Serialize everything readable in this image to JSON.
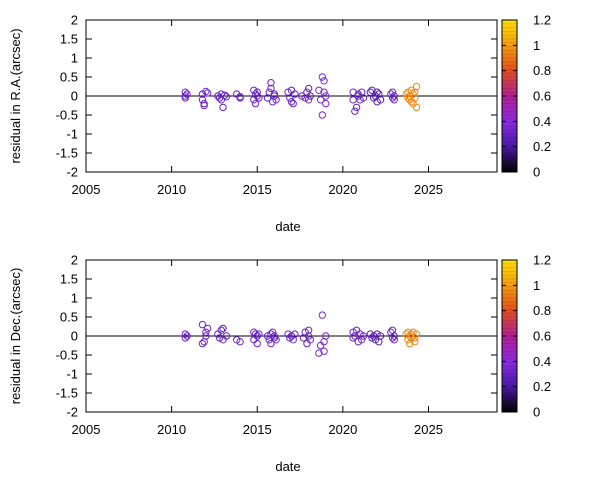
{
  "chart_data": [
    {
      "type": "scatter",
      "name": "ra",
      "xlabel": "date",
      "ylabel": "residual in R.A.(arcsec)",
      "xlim": [
        2005,
        2029
      ],
      "ylim": [
        -2,
        2
      ],
      "x_ticks": [
        2005,
        2010,
        2015,
        2020,
        2025
      ],
      "y_ticks": [
        -2,
        -1.5,
        -1,
        -0.5,
        0,
        0.5,
        1,
        1.5,
        2
      ],
      "colorbar": {
        "range": [
          0,
          1.2
        ],
        "ticks": [
          0,
          0.2,
          0.4,
          0.6,
          0.8,
          1,
          1.2
        ]
      },
      "zero_line": 0,
      "points": [
        {
          "x": 2010.8,
          "y": 0.1,
          "c": 0.3
        },
        {
          "x": 2010.8,
          "y": -0.05,
          "c": 0.3
        },
        {
          "x": 2010.9,
          "y": 0.05,
          "c": 0.3
        },
        {
          "x": 2010.8,
          "y": 0.0,
          "c": 0.3
        },
        {
          "x": 2011.8,
          "y": 0.05,
          "c": 0.32
        },
        {
          "x": 2011.8,
          "y": -0.1,
          "c": 0.32
        },
        {
          "x": 2011.9,
          "y": -0.25,
          "c": 0.32
        },
        {
          "x": 2011.9,
          "y": -0.2,
          "c": 0.32
        },
        {
          "x": 2012.0,
          "y": 0.12,
          "c": 0.32
        },
        {
          "x": 2012.1,
          "y": 0.08,
          "c": 0.32
        },
        {
          "x": 2012.7,
          "y": 0.0,
          "c": 0.3
        },
        {
          "x": 2012.8,
          "y": -0.05,
          "c": 0.3
        },
        {
          "x": 2012.9,
          "y": 0.05,
          "c": 0.3
        },
        {
          "x": 2012.9,
          "y": -0.1,
          "c": 0.3
        },
        {
          "x": 2013.0,
          "y": -0.3,
          "c": 0.3
        },
        {
          "x": 2013.1,
          "y": 0.02,
          "c": 0.3
        },
        {
          "x": 2013.2,
          "y": -0.02,
          "c": 0.3
        },
        {
          "x": 2013.8,
          "y": 0.05,
          "c": 0.3
        },
        {
          "x": 2014.0,
          "y": -0.05,
          "c": 0.3
        },
        {
          "x": 2014.0,
          "y": -0.02,
          "c": 0.3
        },
        {
          "x": 2014.8,
          "y": 0.15,
          "c": 0.3
        },
        {
          "x": 2014.8,
          "y": -0.1,
          "c": 0.3
        },
        {
          "x": 2014.9,
          "y": 0.05,
          "c": 0.3
        },
        {
          "x": 2014.9,
          "y": -0.2,
          "c": 0.3
        },
        {
          "x": 2015.0,
          "y": 0.0,
          "c": 0.3
        },
        {
          "x": 2015.0,
          "y": 0.1,
          "c": 0.3
        },
        {
          "x": 2015.1,
          "y": -0.05,
          "c": 0.3
        },
        {
          "x": 2015.6,
          "y": -0.05,
          "c": 0.3
        },
        {
          "x": 2015.7,
          "y": 0.1,
          "c": 0.3
        },
        {
          "x": 2015.8,
          "y": 0.35,
          "c": 0.3
        },
        {
          "x": 2015.8,
          "y": 0.2,
          "c": 0.3
        },
        {
          "x": 2015.9,
          "y": -0.15,
          "c": 0.3
        },
        {
          "x": 2016.0,
          "y": 0.0,
          "c": 0.3
        },
        {
          "x": 2016.0,
          "y": 0.05,
          "c": 0.3
        },
        {
          "x": 2016.1,
          "y": -0.1,
          "c": 0.3
        },
        {
          "x": 2016.8,
          "y": 0.1,
          "c": 0.3
        },
        {
          "x": 2016.9,
          "y": -0.05,
          "c": 0.3
        },
        {
          "x": 2017.0,
          "y": -0.15,
          "c": 0.3
        },
        {
          "x": 2017.0,
          "y": 0.15,
          "c": 0.3
        },
        {
          "x": 2017.1,
          "y": -0.2,
          "c": 0.3
        },
        {
          "x": 2017.2,
          "y": 0.05,
          "c": 0.3
        },
        {
          "x": 2017.6,
          "y": 0.0,
          "c": 0.3
        },
        {
          "x": 2017.8,
          "y": -0.05,
          "c": 0.3
        },
        {
          "x": 2017.9,
          "y": 0.1,
          "c": 0.3
        },
        {
          "x": 2018.0,
          "y": -0.1,
          "c": 0.3
        },
        {
          "x": 2018.0,
          "y": 0.2,
          "c": 0.3
        },
        {
          "x": 2018.1,
          "y": 0.0,
          "c": 0.3
        },
        {
          "x": 2018.6,
          "y": 0.15,
          "c": 0.35
        },
        {
          "x": 2018.7,
          "y": -0.1,
          "c": 0.35
        },
        {
          "x": 2018.8,
          "y": -0.5,
          "c": 0.35
        },
        {
          "x": 2018.8,
          "y": 0.5,
          "c": 0.35
        },
        {
          "x": 2018.9,
          "y": 0.4,
          "c": 0.35
        },
        {
          "x": 2018.9,
          "y": 0.1,
          "c": 0.35
        },
        {
          "x": 2019.0,
          "y": -0.2,
          "c": 0.35
        },
        {
          "x": 2019.0,
          "y": 0.0,
          "c": 0.35
        },
        {
          "x": 2020.6,
          "y": 0.1,
          "c": 0.3
        },
        {
          "x": 2020.6,
          "y": -0.1,
          "c": 0.3
        },
        {
          "x": 2020.7,
          "y": -0.4,
          "c": 0.3
        },
        {
          "x": 2020.8,
          "y": -0.3,
          "c": 0.3
        },
        {
          "x": 2020.9,
          "y": 0.0,
          "c": 0.3
        },
        {
          "x": 2020.9,
          "y": 0.05,
          "c": 0.3
        },
        {
          "x": 2021.0,
          "y": -0.1,
          "c": 0.3
        },
        {
          "x": 2021.1,
          "y": 0.1,
          "c": 0.3
        },
        {
          "x": 2021.2,
          "y": -0.05,
          "c": 0.3
        },
        {
          "x": 2021.6,
          "y": 0.1,
          "c": 0.25
        },
        {
          "x": 2021.7,
          "y": 0.15,
          "c": 0.25
        },
        {
          "x": 2021.8,
          "y": -0.05,
          "c": 0.25
        },
        {
          "x": 2021.9,
          "y": 0.0,
          "c": 0.25
        },
        {
          "x": 2022.0,
          "y": 0.1,
          "c": 0.25
        },
        {
          "x": 2022.0,
          "y": -0.15,
          "c": 0.25
        },
        {
          "x": 2022.1,
          "y": 0.05,
          "c": 0.25
        },
        {
          "x": 2022.2,
          "y": -0.1,
          "c": 0.25
        },
        {
          "x": 2022.8,
          "y": 0.05,
          "c": 0.3
        },
        {
          "x": 2022.9,
          "y": -0.05,
          "c": 0.3
        },
        {
          "x": 2022.9,
          "y": 0.1,
          "c": 0.3
        },
        {
          "x": 2023.0,
          "y": 0.0,
          "c": 0.3
        },
        {
          "x": 2023.0,
          "y": -0.1,
          "c": 0.3
        },
        {
          "x": 2023.7,
          "y": 0.05,
          "c": 0.95
        },
        {
          "x": 2023.8,
          "y": -0.05,
          "c": 0.95
        },
        {
          "x": 2023.8,
          "y": 0.1,
          "c": 0.95
        },
        {
          "x": 2023.9,
          "y": 0.0,
          "c": 0.95
        },
        {
          "x": 2023.9,
          "y": -0.1,
          "c": 0.95
        },
        {
          "x": 2024.0,
          "y": 0.15,
          "c": 0.95
        },
        {
          "x": 2024.0,
          "y": -0.15,
          "c": 0.95
        },
        {
          "x": 2024.1,
          "y": 0.05,
          "c": 0.95
        },
        {
          "x": 2024.2,
          "y": -0.05,
          "c": 0.95
        },
        {
          "x": 2024.2,
          "y": 0.1,
          "c": 0.95
        },
        {
          "x": 2024.3,
          "y": 0.25,
          "c": 0.95
        },
        {
          "x": 2024.3,
          "y": -0.3,
          "c": 0.95
        },
        {
          "x": 2024.1,
          "y": -0.2,
          "c": 0.95
        }
      ]
    },
    {
      "type": "scatter",
      "name": "dec",
      "xlabel": "date",
      "ylabel": "residual in Dec.(arcsec)",
      "xlim": [
        2005,
        2029
      ],
      "ylim": [
        -2,
        2
      ],
      "x_ticks": [
        2005,
        2010,
        2015,
        2020,
        2025
      ],
      "y_ticks": [
        -2,
        -1.5,
        -1,
        -0.5,
        0,
        0.5,
        1,
        1.5,
        2
      ],
      "colorbar": {
        "range": [
          0,
          1.2
        ],
        "ticks": [
          0,
          0.2,
          0.4,
          0.6,
          0.8,
          1,
          1.2
        ]
      },
      "zero_line": 0,
      "points": [
        {
          "x": 2010.8,
          "y": 0.05,
          "c": 0.3
        },
        {
          "x": 2010.8,
          "y": -0.05,
          "c": 0.3
        },
        {
          "x": 2010.9,
          "y": 0.0,
          "c": 0.3
        },
        {
          "x": 2011.8,
          "y": 0.3,
          "c": 0.32
        },
        {
          "x": 2011.8,
          "y": -0.2,
          "c": 0.32
        },
        {
          "x": 2011.9,
          "y": -0.15,
          "c": 0.32
        },
        {
          "x": 2012.0,
          "y": 0.1,
          "c": 0.32
        },
        {
          "x": 2012.1,
          "y": 0.2,
          "c": 0.32
        },
        {
          "x": 2012.0,
          "y": 0.0,
          "c": 0.32
        },
        {
          "x": 2012.7,
          "y": 0.05,
          "c": 0.3
        },
        {
          "x": 2012.8,
          "y": -0.05,
          "c": 0.3
        },
        {
          "x": 2012.9,
          "y": 0.15,
          "c": 0.3
        },
        {
          "x": 2013.0,
          "y": 0.2,
          "c": 0.3
        },
        {
          "x": 2013.0,
          "y": -0.1,
          "c": 0.3
        },
        {
          "x": 2013.2,
          "y": 0.0,
          "c": 0.3
        },
        {
          "x": 2013.8,
          "y": -0.1,
          "c": 0.3
        },
        {
          "x": 2014.0,
          "y": -0.15,
          "c": 0.3
        },
        {
          "x": 2014.8,
          "y": 0.1,
          "c": 0.3
        },
        {
          "x": 2014.8,
          "y": -0.1,
          "c": 0.3
        },
        {
          "x": 2014.9,
          "y": 0.05,
          "c": 0.3
        },
        {
          "x": 2015.0,
          "y": -0.2,
          "c": 0.3
        },
        {
          "x": 2015.0,
          "y": 0.0,
          "c": 0.3
        },
        {
          "x": 2015.1,
          "y": 0.05,
          "c": 0.3
        },
        {
          "x": 2015.6,
          "y": 0.0,
          "c": 0.3
        },
        {
          "x": 2015.7,
          "y": -0.1,
          "c": 0.3
        },
        {
          "x": 2015.8,
          "y": 0.05,
          "c": 0.3
        },
        {
          "x": 2015.8,
          "y": -0.2,
          "c": 0.3
        },
        {
          "x": 2015.9,
          "y": 0.1,
          "c": 0.3
        },
        {
          "x": 2016.0,
          "y": -0.05,
          "c": 0.3
        },
        {
          "x": 2016.0,
          "y": 0.0,
          "c": 0.3
        },
        {
          "x": 2016.1,
          "y": -0.1,
          "c": 0.3
        },
        {
          "x": 2016.8,
          "y": 0.05,
          "c": 0.3
        },
        {
          "x": 2016.9,
          "y": -0.05,
          "c": 0.3
        },
        {
          "x": 2017.0,
          "y": 0.0,
          "c": 0.3
        },
        {
          "x": 2017.1,
          "y": -0.1,
          "c": 0.3
        },
        {
          "x": 2017.2,
          "y": 0.05,
          "c": 0.3
        },
        {
          "x": 2017.7,
          "y": -0.05,
          "c": 0.3
        },
        {
          "x": 2017.8,
          "y": 0.1,
          "c": 0.3
        },
        {
          "x": 2017.9,
          "y": -0.2,
          "c": 0.3
        },
        {
          "x": 2018.0,
          "y": 0.15,
          "c": 0.3
        },
        {
          "x": 2018.0,
          "y": 0.0,
          "c": 0.3
        },
        {
          "x": 2018.1,
          "y": -0.1,
          "c": 0.3
        },
        {
          "x": 2018.6,
          "y": -0.45,
          "c": 0.35
        },
        {
          "x": 2018.7,
          "y": -0.25,
          "c": 0.35
        },
        {
          "x": 2018.8,
          "y": 0.55,
          "c": 0.35
        },
        {
          "x": 2018.9,
          "y": -0.4,
          "c": 0.35
        },
        {
          "x": 2018.9,
          "y": -0.15,
          "c": 0.35
        },
        {
          "x": 2019.0,
          "y": 0.0,
          "c": 0.35
        },
        {
          "x": 2020.6,
          "y": 0.1,
          "c": 0.3
        },
        {
          "x": 2020.6,
          "y": -0.05,
          "c": 0.3
        },
        {
          "x": 2020.7,
          "y": 0.0,
          "c": 0.3
        },
        {
          "x": 2020.8,
          "y": 0.15,
          "c": 0.3
        },
        {
          "x": 2020.9,
          "y": -0.15,
          "c": 0.3
        },
        {
          "x": 2021.0,
          "y": 0.05,
          "c": 0.3
        },
        {
          "x": 2021.1,
          "y": -0.1,
          "c": 0.3
        },
        {
          "x": 2021.2,
          "y": 0.0,
          "c": 0.3
        },
        {
          "x": 2021.6,
          "y": 0.05,
          "c": 0.25
        },
        {
          "x": 2021.7,
          "y": -0.05,
          "c": 0.25
        },
        {
          "x": 2021.8,
          "y": 0.0,
          "c": 0.25
        },
        {
          "x": 2021.9,
          "y": -0.1,
          "c": 0.25
        },
        {
          "x": 2022.0,
          "y": 0.05,
          "c": 0.25
        },
        {
          "x": 2022.1,
          "y": -0.15,
          "c": 0.25
        },
        {
          "x": 2022.2,
          "y": 0.0,
          "c": 0.25
        },
        {
          "x": 2022.8,
          "y": 0.1,
          "c": 0.3
        },
        {
          "x": 2022.9,
          "y": -0.05,
          "c": 0.3
        },
        {
          "x": 2022.9,
          "y": 0.15,
          "c": 0.3
        },
        {
          "x": 2023.0,
          "y": 0.0,
          "c": 0.3
        },
        {
          "x": 2023.0,
          "y": -0.1,
          "c": 0.3
        },
        {
          "x": 2023.7,
          "y": 0.05,
          "c": 0.95
        },
        {
          "x": 2023.8,
          "y": -0.1,
          "c": 0.95
        },
        {
          "x": 2023.8,
          "y": 0.1,
          "c": 0.95
        },
        {
          "x": 2023.9,
          "y": 0.0,
          "c": 0.95
        },
        {
          "x": 2023.9,
          "y": -0.2,
          "c": 0.95
        },
        {
          "x": 2024.0,
          "y": 0.05,
          "c": 0.95
        },
        {
          "x": 2024.0,
          "y": -0.05,
          "c": 0.95
        },
        {
          "x": 2024.1,
          "y": 0.1,
          "c": 0.95
        },
        {
          "x": 2024.2,
          "y": -0.15,
          "c": 0.95
        },
        {
          "x": 2024.3,
          "y": 0.05,
          "c": 0.95
        },
        {
          "x": 2024.2,
          "y": -0.05,
          "c": 0.95
        }
      ]
    }
  ]
}
